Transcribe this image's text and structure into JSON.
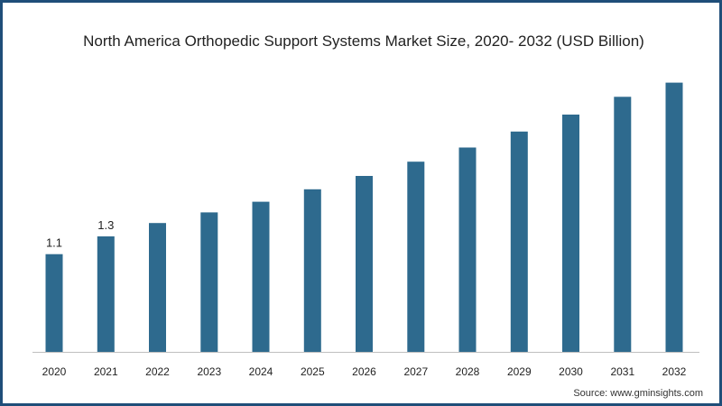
{
  "chart_title": "North America Orthopedic Support Systems Market Size, 2020- 2032 (USD Billion)",
  "source": "Source: www.gminsights.com",
  "colors": {
    "bar": "#2e6a8e",
    "axis": "#bfbfbf",
    "frame": "#1f4e79"
  },
  "chart_data": {
    "type": "bar",
    "title": "North America Orthopedic Support Systems Market Size, 2020- 2032 (USD Billion)",
    "categories": [
      "2020",
      "2021",
      "2022",
      "2023",
      "2024",
      "2025",
      "2026",
      "2027",
      "2028",
      "2029",
      "2030",
      "2031",
      "2032"
    ],
    "values": [
      1.1,
      1.3,
      1.45,
      1.57,
      1.69,
      1.83,
      1.98,
      2.14,
      2.3,
      2.48,
      2.67,
      2.87,
      3.03
    ],
    "data_labels": [
      "1.1",
      "1.3",
      "",
      "",
      "",
      "",
      "",
      "",
      "",
      "",
      "",
      "",
      ""
    ],
    "xlabel": "",
    "ylabel": "",
    "ylim": [
      0,
      3.3
    ],
    "grid": false,
    "legend": "none"
  }
}
